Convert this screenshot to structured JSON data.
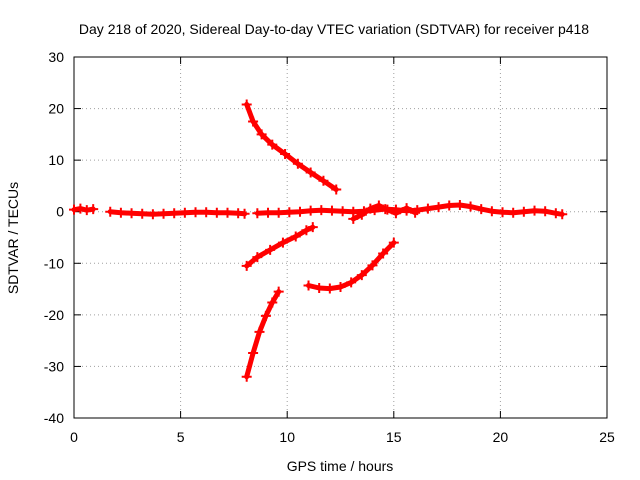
{
  "chart_data": {
    "type": "scatter",
    "title": "Day 218 of 2020, Sidereal Day-to-day VTEC variation (SDTVAR) for receiver p418",
    "xlabel": "GPS time / hours",
    "ylabel": "SDTVAR / TECUs",
    "xlim": [
      0,
      25
    ],
    "ylim": [
      -40,
      30
    ],
    "xticks": [
      0,
      5,
      10,
      15,
      20,
      25
    ],
    "yticks": [
      -40,
      -30,
      -20,
      -10,
      0,
      10,
      20,
      30
    ],
    "grid": true,
    "legend": "none",
    "marker": "plus",
    "series_color": "#ff0000",
    "series": [
      {
        "x": [
          0.0,
          0.3,
          0.6,
          0.9
        ],
        "y": [
          0.4,
          0.6,
          0.3,
          0.5
        ]
      },
      {
        "x": [
          1.7,
          2.2,
          2.7,
          3.2,
          3.7,
          4.2,
          4.7,
          5.2,
          5.7,
          6.2,
          6.7,
          7.2,
          7.7,
          8.0
        ],
        "y": [
          0.0,
          -0.2,
          -0.3,
          -0.4,
          -0.5,
          -0.4,
          -0.3,
          -0.2,
          -0.1,
          -0.1,
          -0.2,
          -0.2,
          -0.3,
          -0.4
        ]
      },
      {
        "x": [
          8.6,
          9.1,
          9.6,
          10.1,
          10.6,
          11.1,
          11.6,
          12.1,
          12.6,
          13.1,
          13.6,
          14.1,
          14.6,
          15.1,
          15.6,
          16.1,
          16.6,
          17.1,
          17.6,
          18.1,
          18.6,
          19.1,
          19.6,
          20.1,
          20.6,
          21.1,
          21.6,
          22.1,
          22.6,
          22.9
        ],
        "y": [
          -0.3,
          -0.2,
          -0.2,
          -0.1,
          0.0,
          0.2,
          0.3,
          0.2,
          0.1,
          0.0,
          0.1,
          0.3,
          0.5,
          0.4,
          0.2,
          0.3,
          0.6,
          0.9,
          1.2,
          1.3,
          1.0,
          0.5,
          0.1,
          -0.1,
          -0.2,
          0.0,
          0.2,
          0.1,
          -0.3,
          -0.5
        ]
      },
      {
        "x": [
          13.1,
          13.5,
          13.9,
          14.3,
          14.7,
          15.1,
          15.6,
          16.0
        ],
        "y": [
          -1.4,
          -0.6,
          0.6,
          1.2,
          0.4,
          -0.3,
          0.7,
          -0.2
        ]
      },
      {
        "x": [
          8.1,
          8.4,
          8.8,
          9.3,
          9.9,
          10.5,
          11.1,
          11.7,
          12.3
        ],
        "y": [
          20.8,
          17.5,
          15.0,
          13.0,
          11.2,
          9.3,
          7.6,
          6.0,
          4.3
        ]
      },
      {
        "x": [
          8.1,
          8.6,
          9.2,
          9.8,
          10.4,
          10.9,
          11.2
        ],
        "y": [
          -10.5,
          -8.8,
          -7.4,
          -6.0,
          -4.8,
          -3.6,
          -3.0
        ]
      },
      {
        "x": [
          11.0,
          11.5,
          12.0,
          12.5,
          13.0,
          13.5,
          14.0,
          14.5,
          15.0
        ],
        "y": [
          -14.3,
          -14.8,
          -14.9,
          -14.6,
          -13.7,
          -12.3,
          -10.4,
          -8.1,
          -6.0
        ]
      },
      {
        "x": [
          8.1,
          8.4,
          8.7,
          9.0,
          9.3,
          9.6
        ],
        "y": [
          -32.0,
          -27.4,
          -23.3,
          -20.2,
          -17.6,
          -15.5
        ]
      }
    ]
  }
}
